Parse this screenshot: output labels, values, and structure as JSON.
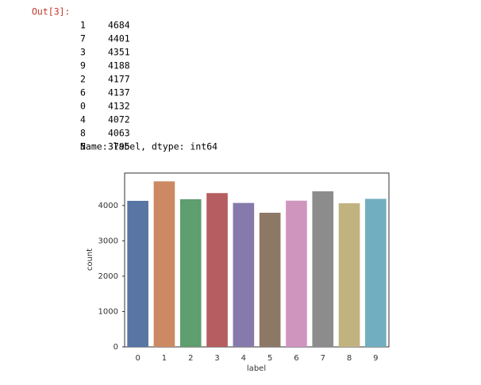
{
  "prompt": "Out[3]:",
  "series_output": {
    "rows": [
      [
        1,
        4684
      ],
      [
        7,
        4401
      ],
      [
        3,
        4351
      ],
      [
        9,
        4188
      ],
      [
        2,
        4177
      ],
      [
        6,
        4137
      ],
      [
        0,
        4132
      ],
      [
        4,
        4072
      ],
      [
        8,
        4063
      ],
      [
        5,
        3795
      ]
    ],
    "footer": "Name: label, dtype: int64"
  },
  "chart_data": {
    "type": "bar",
    "x_label": "label",
    "y_label": "count",
    "categories": [
      "0",
      "1",
      "2",
      "3",
      "4",
      "5",
      "6",
      "7",
      "8",
      "9"
    ],
    "values": [
      4132,
      4684,
      4177,
      4351,
      4072,
      3795,
      4137,
      4401,
      4063,
      4188
    ],
    "colors": [
      "#5875a4",
      "#cc8963",
      "#5f9e6e",
      "#b55d60",
      "#857aab",
      "#8d7866",
      "#d095bf",
      "#8c8c8c",
      "#c1b37f",
      "#71aec0"
    ],
    "ylim": [
      0,
      4918
    ],
    "yticks": [
      0,
      1000,
      2000,
      3000,
      4000
    ]
  }
}
